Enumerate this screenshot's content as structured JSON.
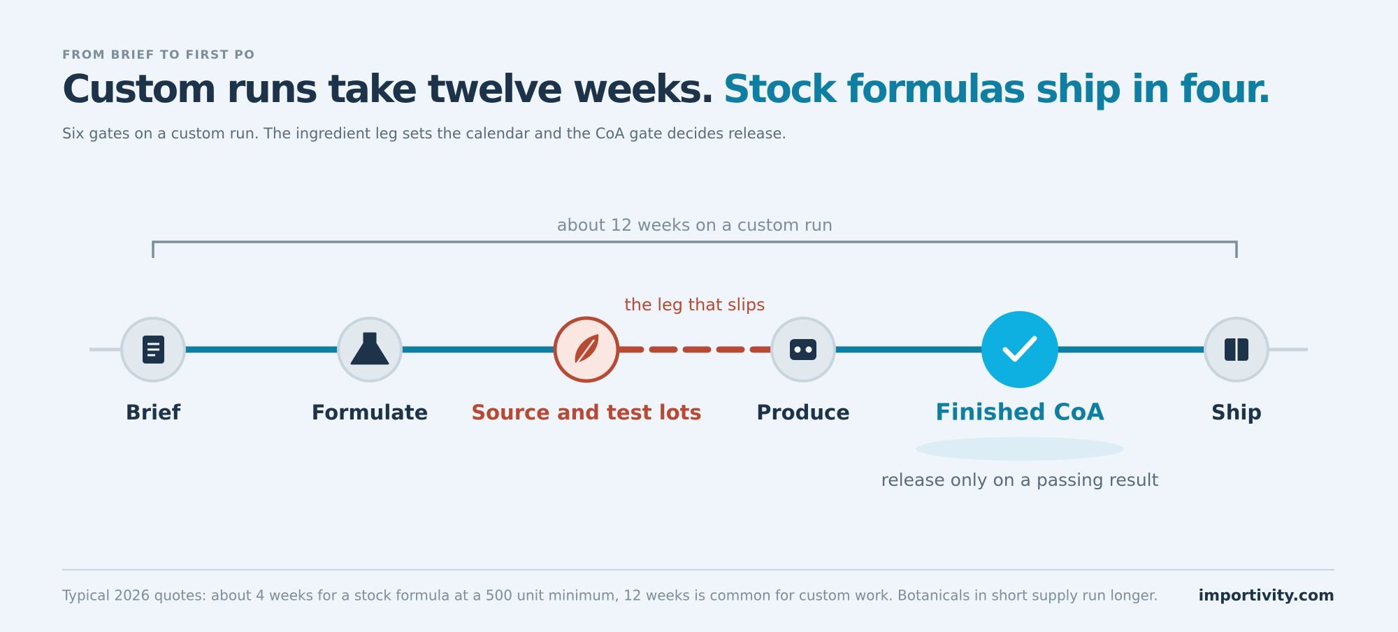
{
  "header": {
    "eyebrow": "FROM BRIEF TO FIRST PO",
    "title_lead": "Custom runs take twelve weeks.",
    "title_accent": "Stock formulas ship in four.",
    "subtitle": "Six gates on a custom run. The ingredient leg sets the calendar and the CoA gate decides release."
  },
  "timeline": {
    "span_label": "about 12 weeks on a custom run",
    "slip_label": "the leg that slips",
    "nodes": [
      {
        "label": "Brief"
      },
      {
        "label": "Formulate"
      },
      {
        "label": "Source and test lots"
      },
      {
        "label": "Produce"
      },
      {
        "label": "Finished CoA"
      },
      {
        "label": "Ship"
      }
    ],
    "gate_note": "release only on a passing result"
  },
  "footer": {
    "note": "Typical 2026 quotes: about 4 weeks for a stock formula at a 500 unit minimum, 12 weeks is common for custom work. Botanicals in short supply run longer.",
    "brand": "importivity.com"
  }
}
